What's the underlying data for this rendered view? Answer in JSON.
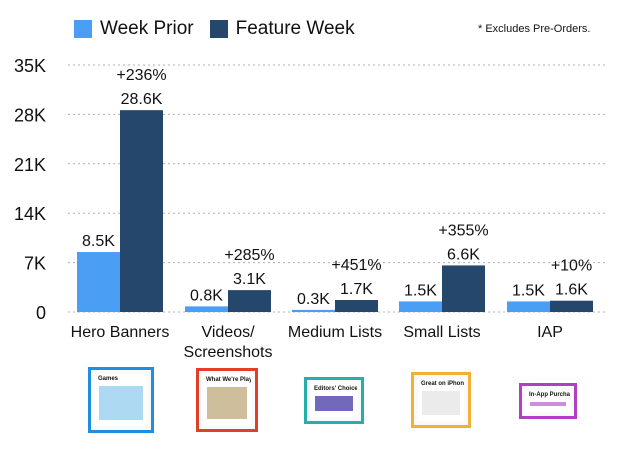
{
  "chart_data": {
    "type": "bar",
    "title": "",
    "footnote": "* Excludes Pre-Orders.",
    "categories": [
      "Hero Banners",
      "Videos/\nScreenshots",
      "Medium Lists",
      "Small Lists",
      "IAP"
    ],
    "series": [
      {
        "name": "Week Prior",
        "color": "#4a9ff5",
        "values": [
          8.5,
          0.8,
          0.3,
          1.5,
          1.5
        ],
        "labels": [
          "8.5K",
          "0.8K",
          "0.3K",
          "1.5K",
          "1.5K"
        ]
      },
      {
        "name": "Feature Week",
        "color": "#24476b",
        "values": [
          28.6,
          3.1,
          1.7,
          6.6,
          1.6
        ],
        "labels": [
          "28.6K",
          "3.1K",
          "1.7K",
          "6.6K",
          "1.6K"
        ]
      }
    ],
    "pct_change": [
      "+236%",
      "+285%",
      "+451%",
      "+355%",
      "+10%"
    ],
    "ylim": [
      0,
      35
    ],
    "yticks": [
      0,
      7,
      14,
      21,
      28,
      35
    ],
    "ytick_labels": [
      "0",
      "7K",
      "14K",
      "21K",
      "28K",
      "35K"
    ],
    "xlabel": "",
    "ylabel": "",
    "grid": true,
    "legend_position": "top-left"
  },
  "thumbnails": [
    {
      "name": "hero-banner-thumbnail",
      "caption": "Games",
      "border": "#1e8fe0"
    },
    {
      "name": "videos-screenshots-thumbnail",
      "caption": "What We're Playing",
      "border": "#e0402a"
    },
    {
      "name": "medium-lists-thumbnail",
      "caption": "Editors' Choice",
      "border": "#22b0a8"
    },
    {
      "name": "small-lists-thumbnail",
      "caption": "Great on iPhone X",
      "border": "#f2b134"
    },
    {
      "name": "iap-thumbnail",
      "caption": "In-App Purchases",
      "border": "#b03fc4"
    }
  ]
}
